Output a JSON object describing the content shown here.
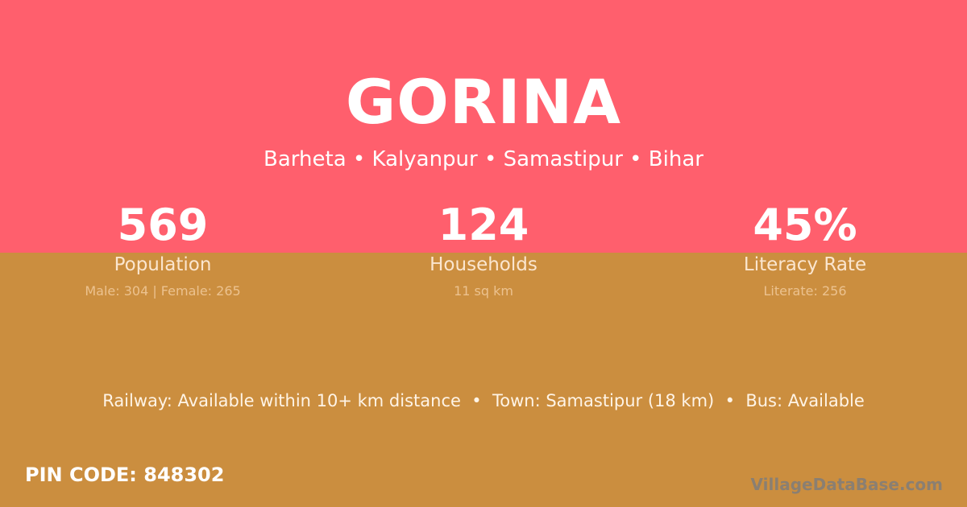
{
  "header": {
    "title": "GORINA",
    "location": "Barheta • Kalyanpur • Samastipur • Bihar"
  },
  "colors": {
    "top": "#ff5f6d",
    "bottom": "#cb8e3f"
  },
  "stats": [
    {
      "value": "569",
      "label": "Population",
      "detail": "Male: 304 | Female: 265"
    },
    {
      "value": "124",
      "label": "Households",
      "detail": "11 sq km"
    },
    {
      "value": "45%",
      "label": "Literacy Rate",
      "detail": "Literate: 256"
    }
  ],
  "info": "Railway: Available within 10+ km distance  •  Town: Samastipur (18 km)  •  Bus: Available",
  "pin": "PIN CODE: 848302",
  "brand": "VillageDataBase.com"
}
